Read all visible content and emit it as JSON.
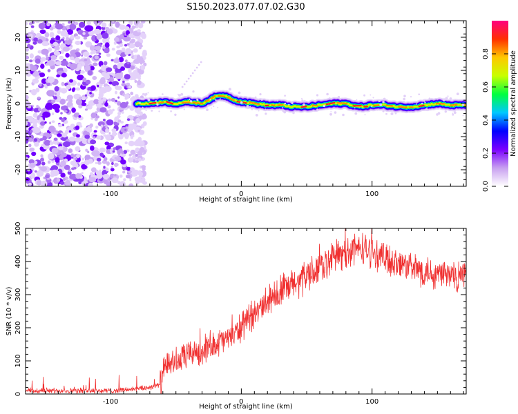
{
  "title": "S150.2023.077.07.02.G30",
  "chart_data": [
    {
      "type": "heatmap",
      "xlabel": "Height of straight line (km)",
      "ylabel": "Frequency (Hz)",
      "xlim": [
        -165,
        172
      ],
      "ylim": [
        -25,
        25
      ],
      "xticks": [
        -100,
        0,
        100
      ],
      "yticks": [
        -20,
        -10,
        0,
        10,
        20
      ],
      "colorbar": {
        "label": "Normalized spectral amplitude",
        "range": [
          0,
          1
        ],
        "ticks": [
          0.0,
          0.2,
          0.4,
          0.6,
          0.8
        ],
        "colors": [
          "#ffffff",
          "#c8a0f0",
          "#7a00ff",
          "#0000ff",
          "#00c8ff",
          "#00ff40",
          "#c8ff00",
          "#ffc800",
          "#ff3000",
          "#ff0080"
        ]
      },
      "noise_region_x": [
        -165,
        -80
      ],
      "ridge": {
        "x": [
          -80,
          -70,
          -60,
          -50,
          -40,
          -30,
          -20,
          -15,
          -10,
          -5,
          0,
          10,
          20,
          30,
          40,
          50,
          60,
          70,
          80,
          90,
          100,
          110,
          120,
          130,
          140,
          150,
          160,
          172
        ],
        "freq": [
          0,
          0,
          0.5,
          0,
          0.5,
          0,
          2,
          2.5,
          2,
          1,
          0.5,
          0,
          -0.5,
          -0.5,
          -1,
          -1,
          -0.5,
          0,
          0,
          -1,
          -0.5,
          -0.5,
          -1,
          -1,
          -0.5,
          0,
          -0.5,
          -0.5
        ]
      }
    },
    {
      "type": "line",
      "xlabel": "Height of straight line (km)",
      "ylabel": "SNR (10 * v/v)",
      "xlim": [
        -165,
        172
      ],
      "ylim": [
        0,
        500
      ],
      "xticks": [
        -100,
        0,
        100
      ],
      "yticks": [
        0,
        100,
        200,
        300,
        400,
        500
      ],
      "color": "#f03030",
      "x": [
        -165,
        -140,
        -120,
        -100,
        -90,
        -80,
        -70,
        -62,
        -58,
        -54,
        -50,
        -45,
        -40,
        -30,
        -20,
        -10,
        0,
        10,
        20,
        30,
        40,
        50,
        60,
        70,
        80,
        90,
        100,
        110,
        120,
        130,
        140,
        150,
        160,
        172
      ],
      "values": [
        10,
        10,
        10,
        10,
        12,
        15,
        20,
        28,
        85,
        90,
        95,
        105,
        120,
        135,
        150,
        170,
        200,
        240,
        285,
        310,
        330,
        355,
        385,
        410,
        430,
        440,
        430,
        410,
        395,
        380,
        370,
        365,
        360,
        355
      ]
    }
  ]
}
